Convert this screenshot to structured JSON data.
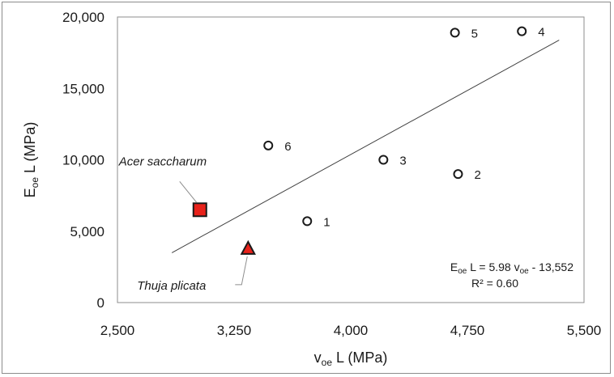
{
  "chart_data": {
    "type": "scatter",
    "xlabel": {
      "main": "v",
      "sub": "oe",
      "rest": " L  (MPa)"
    },
    "ylabel": {
      "main": "E",
      "sub": "oe",
      "rest": " L  (MPa)"
    },
    "xlim": [
      2500,
      5500
    ],
    "ylim": [
      0,
      20000
    ],
    "xticks": [
      2500,
      3250,
      4000,
      4750,
      5500
    ],
    "yticks": [
      0,
      5000,
      10000,
      15000,
      20000
    ],
    "xtick_labels": [
      "2,500",
      "3,250",
      "4,000",
      "4,750",
      "5,500"
    ],
    "ytick_labels": [
      "0",
      "5,000",
      "10,000",
      "15,000",
      "20,000"
    ],
    "grid": false,
    "points": [
      {
        "label": "1",
        "x": 3720,
        "y": 5700
      },
      {
        "label": "2",
        "x": 4690,
        "y": 9000
      },
      {
        "label": "3",
        "x": 4210,
        "y": 10000
      },
      {
        "label": "4",
        "x": 5100,
        "y": 19000
      },
      {
        "label": "5",
        "x": 4670,
        "y": 18900
      },
      {
        "label": "6",
        "x": 3470,
        "y": 11000
      }
    ],
    "special_points": [
      {
        "label": "Acer saccharum",
        "x": 3030,
        "y": 6500,
        "marker": "square",
        "color": "#e8221b"
      },
      {
        "label": "Thuja plicata",
        "x": 3340,
        "y": 3800,
        "marker": "triangle",
        "color": "#e8221b"
      }
    ],
    "trendline": {
      "slope": 5.98,
      "intercept": -13552,
      "x_range": [
        2850,
        5340
      ]
    },
    "equation": {
      "lhs_main": "E",
      "lhs_sub": "oe",
      "lhs_rest": " L = 5.98 v",
      "v_sub": "oe",
      "tail": " - 13,552",
      "r2": "R² = 0.60"
    }
  }
}
